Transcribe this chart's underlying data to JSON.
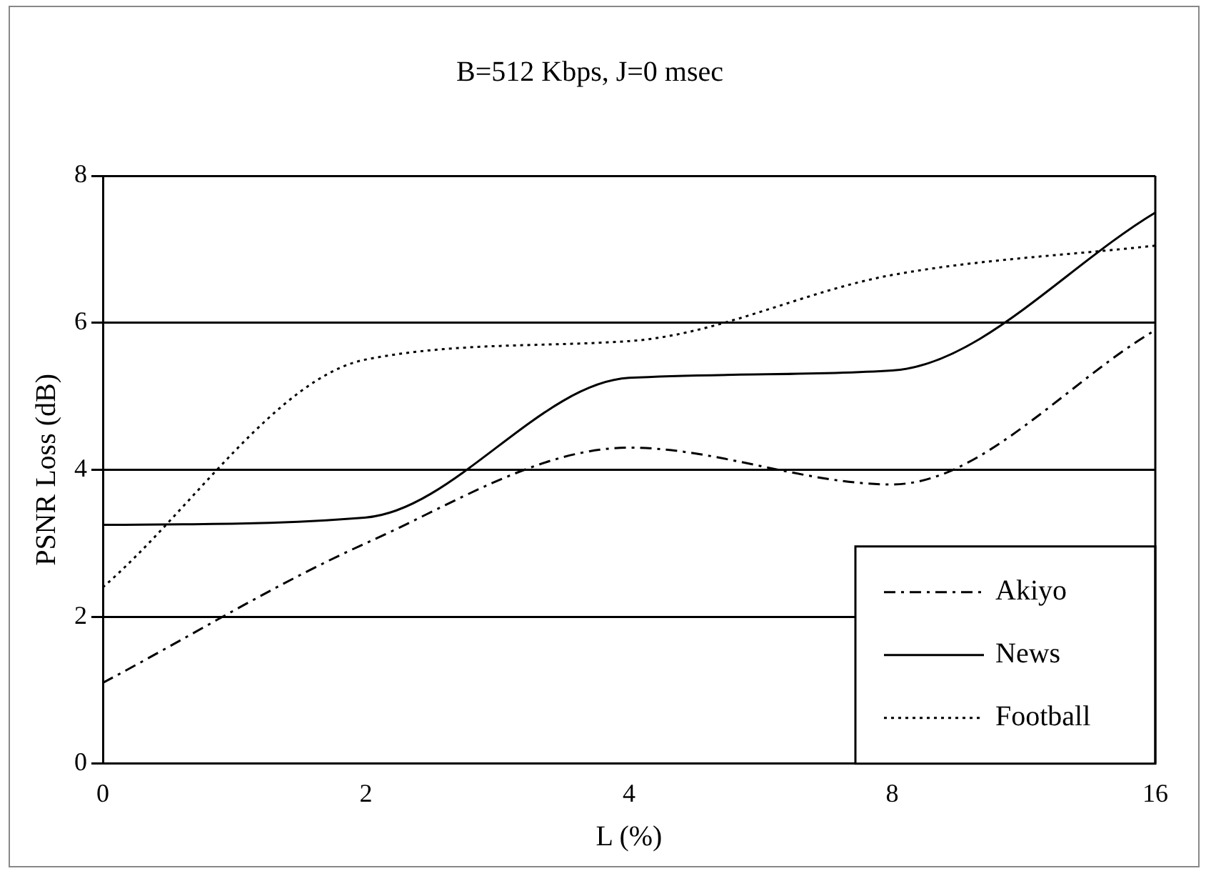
{
  "chart_data": {
    "type": "line",
    "title": "B=512 Kbps, J=0 msec",
    "xlabel": "L (%)",
    "ylabel": "PSNR Loss (dB)",
    "categories": [
      "0",
      "2",
      "4",
      "8",
      "16"
    ],
    "series": [
      {
        "name": "Akiyo",
        "color": "#000000",
        "line_style": "dashed",
        "values": [
          1.1,
          3.0,
          4.3,
          3.8,
          5.9
        ]
      },
      {
        "name": "News",
        "color": "#000000",
        "line_style": "solid",
        "values": [
          3.25,
          3.35,
          5.25,
          5.35,
          7.5
        ]
      },
      {
        "name": "Football",
        "color": "#000000",
        "line_style": "dotted",
        "values": [
          2.4,
          5.5,
          5.75,
          6.65,
          7.05
        ]
      }
    ],
    "ylim": [
      0,
      8
    ],
    "yticks": [
      0,
      2,
      4,
      6,
      8
    ],
    "grid": "y",
    "legend": "bottom right",
    "marker": "none"
  }
}
